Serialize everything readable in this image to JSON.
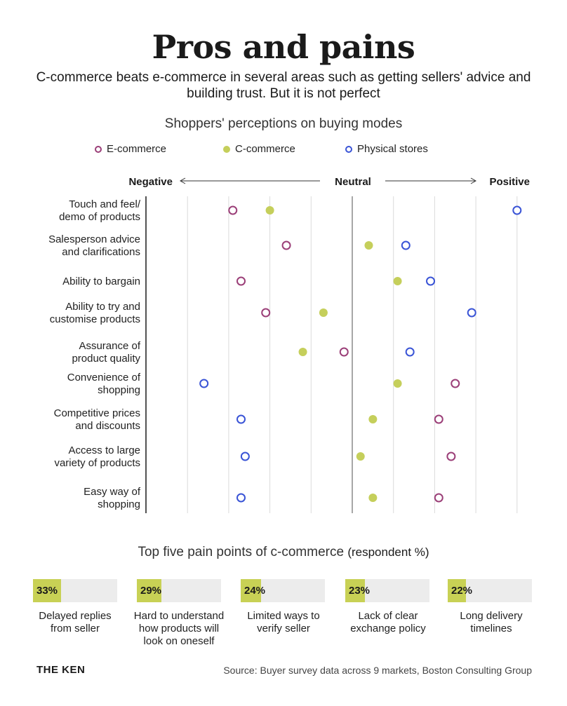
{
  "header": {
    "title": "Pros and pains",
    "subtitle": "C-commerce beats e-commerce in several areas such as getting sellers' advice and building trust. But it is not perfect"
  },
  "chart_data": [
    {
      "type": "scatter",
      "title": "Shoppers' perceptions on buying modes",
      "axis": {
        "negative": "Negative",
        "neutral": "Neutral",
        "positive": "Positive",
        "xlim": [
          -5,
          4
        ]
      },
      "legend": {
        "placement": "top",
        "items": [
          {
            "name": "E-commerce",
            "style": "hollow",
            "color": "#9b3f78"
          },
          {
            "name": "C-commerce",
            "style": "filled",
            "color": "#c5cf5b"
          },
          {
            "name": "Physical stores",
            "style": "hollow",
            "color": "#3a54d6"
          }
        ]
      },
      "categories": [
        "Touch and feel/\ndemo of products",
        "Salesperson advice\nand clarifications",
        "Ability to bargain",
        "Ability to try and\ncustomise products",
        "Assurance of\nproduct quality",
        "Convenience of\nshopping",
        "Competitive prices\nand discounts",
        "Access to large\nvariety of products",
        "Easy way of\nshopping"
      ],
      "series": [
        {
          "name": "E-commerce",
          "values": [
            -2.9,
            -1.6,
            -2.7,
            -2.1,
            -0.2,
            2.5,
            2.1,
            2.4,
            2.1
          ]
        },
        {
          "name": "C-commerce",
          "values": [
            -2.0,
            0.4,
            1.1,
            -0.7,
            -1.2,
            1.1,
            0.5,
            0.2,
            0.5
          ]
        },
        {
          "name": "Physical stores",
          "values": [
            4.0,
            1.3,
            1.9,
            2.9,
            1.4,
            -3.6,
            -2.7,
            -2.6,
            -2.7
          ]
        }
      ]
    },
    {
      "type": "bar",
      "title": "Top five pain points of c-commerce",
      "title_suffix": "(respondent %)",
      "categories": [
        "Delayed replies\nfrom seller",
        "Hard to understand\nhow products will\nlook on oneself",
        "Limited ways to\nverify seller",
        "Lack of clear\nexchange policy",
        "Long delivery\ntimelines"
      ],
      "values": [
        33,
        29,
        24,
        23,
        22
      ],
      "value_labels": [
        "33%",
        "29%",
        "24%",
        "23%",
        "22%"
      ],
      "ylim": [
        0,
        100
      ],
      "fill_color": "#c8d155"
    }
  ],
  "footer": {
    "brand": "THE KEN",
    "source": "Source: Buyer survey data across 9 markets, Boston Consulting Group"
  }
}
